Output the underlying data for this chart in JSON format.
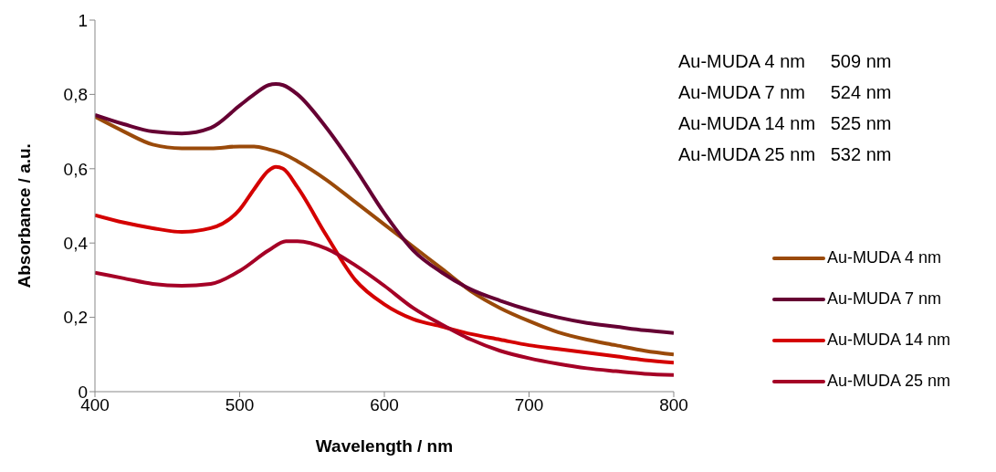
{
  "chart_data": {
    "type": "line",
    "xlabel": "Wavelength / nm",
    "ylabel": "Absorbance / a.u.",
    "xlim": [
      400,
      800
    ],
    "xticks": [
      400,
      500,
      600,
      700,
      800
    ],
    "ylim": [
      0,
      1
    ],
    "yticks": [
      0,
      {
        "value": 0.2,
        "label": "0,2"
      },
      {
        "value": 0.4,
        "label": "0,4"
      },
      {
        "value": 0.6,
        "label": "0,6"
      },
      {
        "value": 0.8,
        "label": "0,8"
      },
      1
    ],
    "grid": false,
    "legend": "right",
    "marker": "none",
    "line_style": "solid",
    "annotations": [
      "Au-MUDA 4 nm     509 nm",
      "Au-MUDA 7 nm     524 nm",
      "Au-MUDA 14 nm   525 nm",
      "Au-MUDA 25 nm   532 nm"
    ],
    "series": [
      {
        "name": "Au-MUDA 4 nm",
        "color": "#9a4a0a",
        "x": [
          400,
          420,
          440,
          460,
          480,
          500,
          510,
          520,
          530,
          540,
          560,
          580,
          600,
          620,
          640,
          660,
          680,
          700,
          720,
          740,
          760,
          780,
          800
        ],
        "values": [
          0.74,
          0.7,
          0.665,
          0.655,
          0.655,
          0.66,
          0.66,
          0.652,
          0.64,
          0.62,
          0.57,
          0.51,
          0.45,
          0.39,
          0.33,
          0.27,
          0.225,
          0.19,
          0.16,
          0.14,
          0.125,
          0.11,
          0.1
        ]
      },
      {
        "name": "Au-MUDA 7 nm",
        "color": "#660033",
        "x": [
          400,
          420,
          440,
          460,
          480,
          500,
          510,
          520,
          525,
          530,
          540,
          560,
          580,
          600,
          620,
          640,
          660,
          680,
          700,
          720,
          740,
          760,
          780,
          800
        ],
        "values": [
          0.745,
          0.72,
          0.7,
          0.695,
          0.71,
          0.77,
          0.8,
          0.825,
          0.828,
          0.825,
          0.8,
          0.71,
          0.6,
          0.48,
          0.38,
          0.32,
          0.275,
          0.245,
          0.22,
          0.2,
          0.185,
          0.175,
          0.165,
          0.158
        ]
      },
      {
        "name": "Au-MUDA 14 nm",
        "color": "#d40000",
        "x": [
          400,
          420,
          440,
          460,
          480,
          500,
          510,
          520,
          525,
          530,
          540,
          560,
          580,
          600,
          620,
          640,
          660,
          680,
          700,
          720,
          740,
          760,
          780,
          800
        ],
        "values": [
          0.475,
          0.455,
          0.44,
          0.43,
          0.44,
          0.49,
          0.545,
          0.595,
          0.605,
          0.6,
          0.55,
          0.42,
          0.3,
          0.235,
          0.195,
          0.175,
          0.155,
          0.14,
          0.125,
          0.115,
          0.105,
          0.095,
          0.085,
          0.078
        ]
      },
      {
        "name": "Au-MUDA 25 nm",
        "color": "#a50026",
        "x": [
          400,
          420,
          440,
          460,
          480,
          500,
          520,
          532,
          540,
          560,
          580,
          600,
          620,
          640,
          660,
          680,
          700,
          720,
          740,
          760,
          780,
          800
        ],
        "values": [
          0.32,
          0.305,
          0.29,
          0.285,
          0.29,
          0.325,
          0.38,
          0.405,
          0.405,
          0.385,
          0.34,
          0.285,
          0.225,
          0.18,
          0.14,
          0.11,
          0.09,
          0.075,
          0.063,
          0.055,
          0.048,
          0.045
        ]
      }
    ]
  }
}
